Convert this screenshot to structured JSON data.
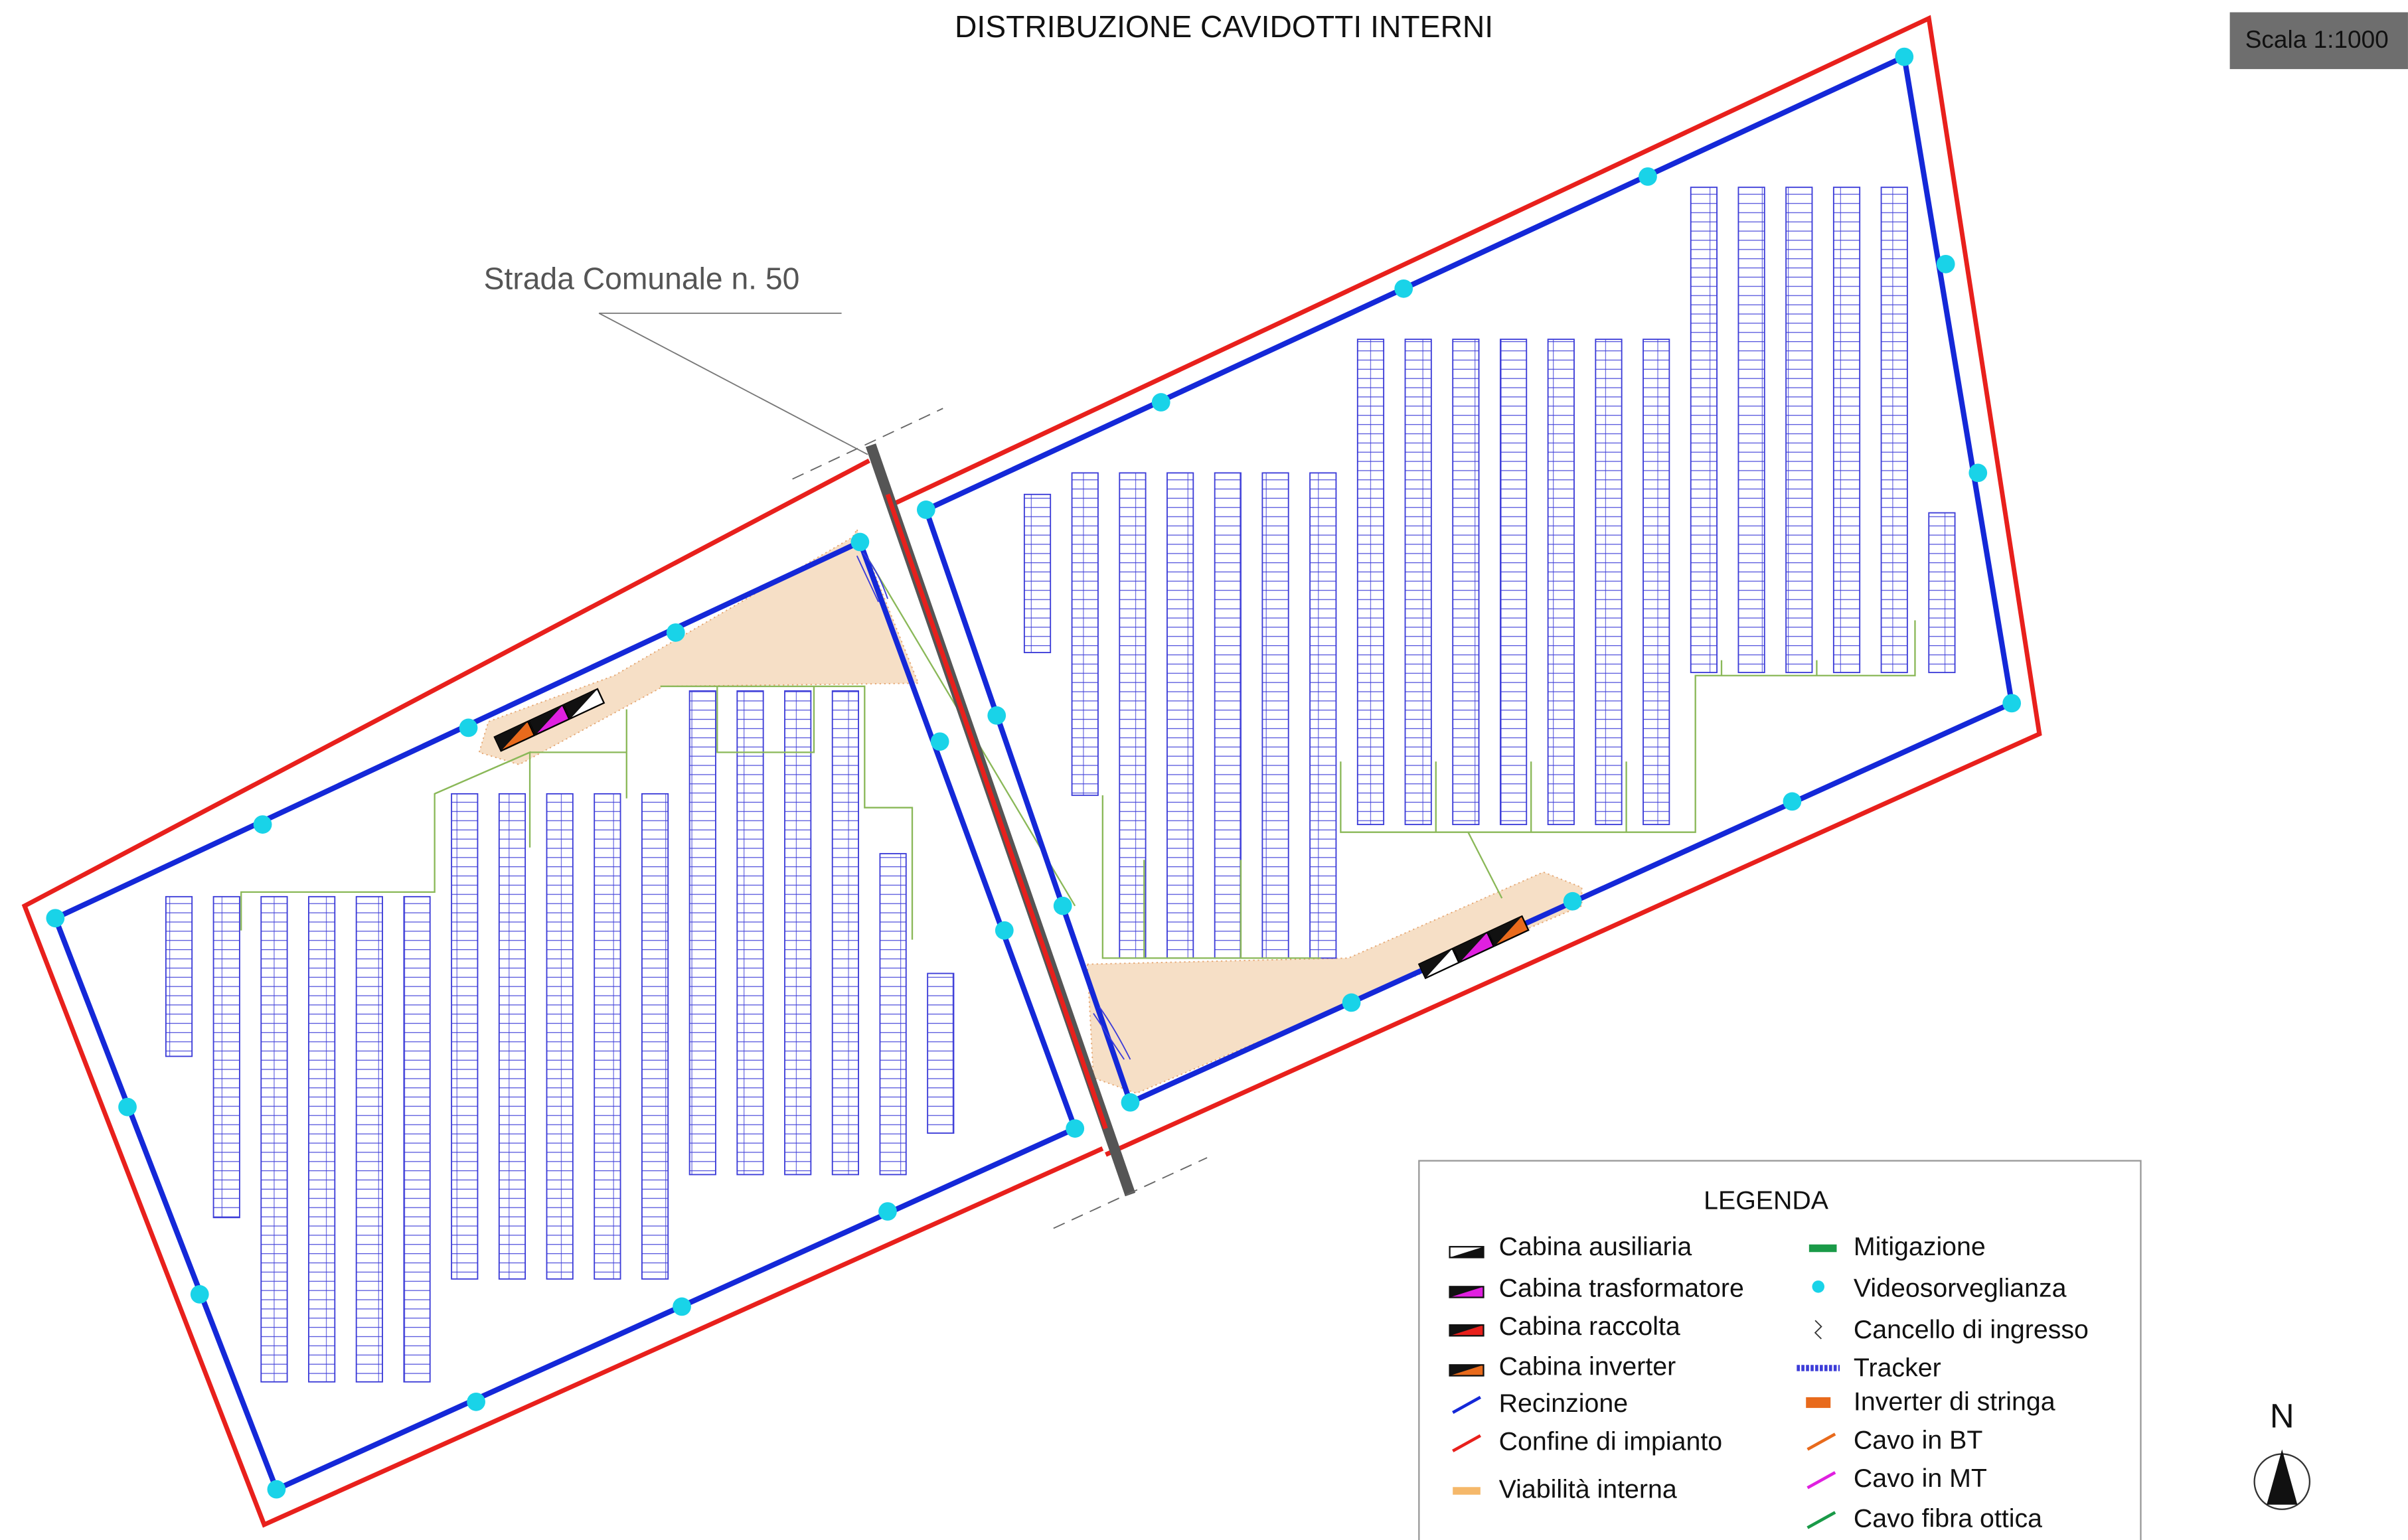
{
  "title": "DISTRIBUZIONE CAVIDOTTI INTERNI",
  "scale": "Scala 1:1000",
  "road_label": "Strada Comunale n. 50",
  "north": "N",
  "legend": {
    "title": "LEGENDA",
    "items": [
      "Cabina ausiliaria",
      "Cabina trasformatore",
      "Cabina raccolta",
      "Cabina inverter",
      "Recinzione",
      "Confine di impianto",
      "Viabilità interna",
      "Mitigazione",
      "Videosorveglianza",
      "Cancello di ingresso",
      "Tracker",
      "Inverter di stringa",
      "Cavo in BT",
      "Cavo in MT",
      "Cavo fibra ottica"
    ]
  }
}
